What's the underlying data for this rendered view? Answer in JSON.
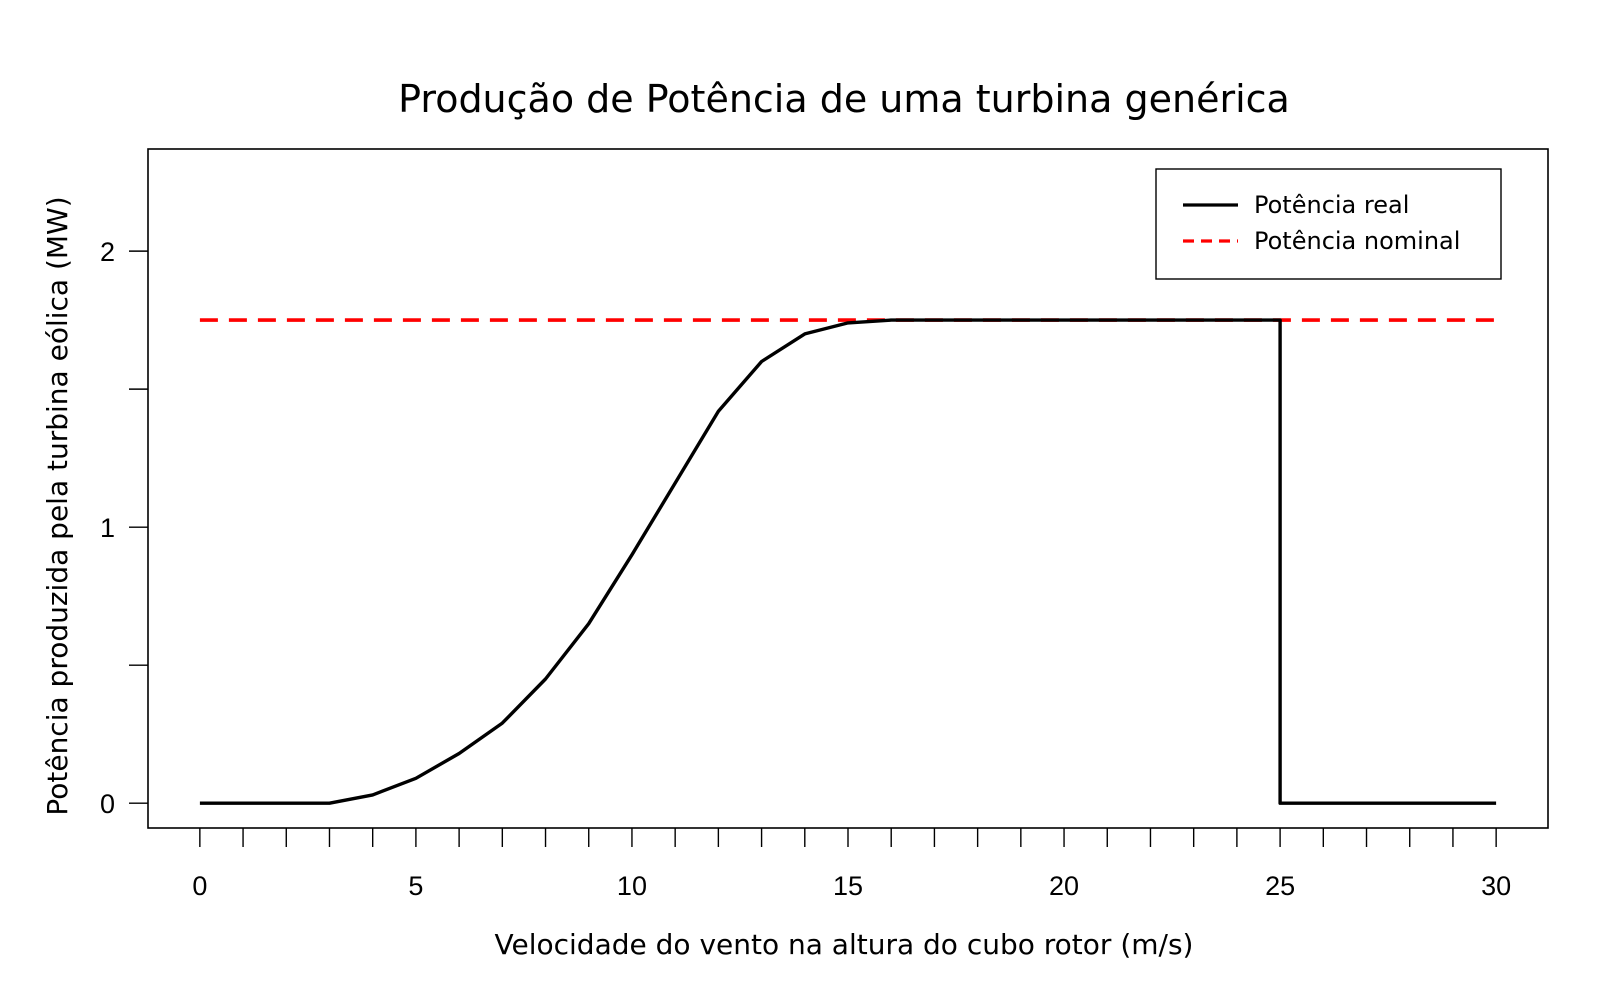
{
  "chart_data": {
    "type": "line",
    "title": "Produção de Potência de uma turbina genérica",
    "xlabel": "Velocidade do vento na altura do cubo rotor (m/s)",
    "ylabel": "Potência produzida pela turbina eólica (MW)",
    "xlim": [
      -1.2,
      31.2
    ],
    "ylim": [
      -0.09,
      2.37
    ],
    "x_ticks": [
      0,
      5,
      10,
      15,
      20,
      25,
      30
    ],
    "x_minor_ticks": [
      1,
      2,
      3,
      4,
      6,
      7,
      8,
      9,
      11,
      12,
      13,
      14,
      16,
      17,
      18,
      19,
      21,
      22,
      23,
      24,
      26,
      27,
      28,
      29
    ],
    "y_ticks": [
      0,
      1,
      2
    ],
    "y_minor_ticks": [
      0.5,
      1.5
    ],
    "grid": false,
    "legend_position": "top-right",
    "series": [
      {
        "name": "Potência real",
        "color": "#000000",
        "style": "solid",
        "points": [
          [
            0,
            0
          ],
          [
            1,
            0
          ],
          [
            2,
            0
          ],
          [
            3,
            0
          ],
          [
            4,
            0.03
          ],
          [
            5,
            0.09
          ],
          [
            6,
            0.18
          ],
          [
            7,
            0.29
          ],
          [
            8,
            0.45
          ],
          [
            9,
            0.65
          ],
          [
            10,
            0.9
          ],
          [
            11,
            1.16
          ],
          [
            12,
            1.42
          ],
          [
            13,
            1.6
          ],
          [
            14,
            1.7
          ],
          [
            15,
            1.74
          ],
          [
            16,
            1.75
          ],
          [
            17,
            1.75
          ],
          [
            18,
            1.75
          ],
          [
            19,
            1.75
          ],
          [
            20,
            1.75
          ],
          [
            21,
            1.75
          ],
          [
            22,
            1.75
          ],
          [
            23,
            1.75
          ],
          [
            24,
            1.75
          ],
          [
            25,
            1.75
          ],
          [
            25,
            0
          ],
          [
            26,
            0
          ],
          [
            27,
            0
          ],
          [
            28,
            0
          ],
          [
            29,
            0
          ],
          [
            30,
            0
          ]
        ]
      },
      {
        "name": "Potência nominal",
        "color": "#ff0000",
        "style": "dashed",
        "points": [
          [
            0,
            1.75
          ],
          [
            30,
            1.75
          ]
        ]
      }
    ]
  }
}
